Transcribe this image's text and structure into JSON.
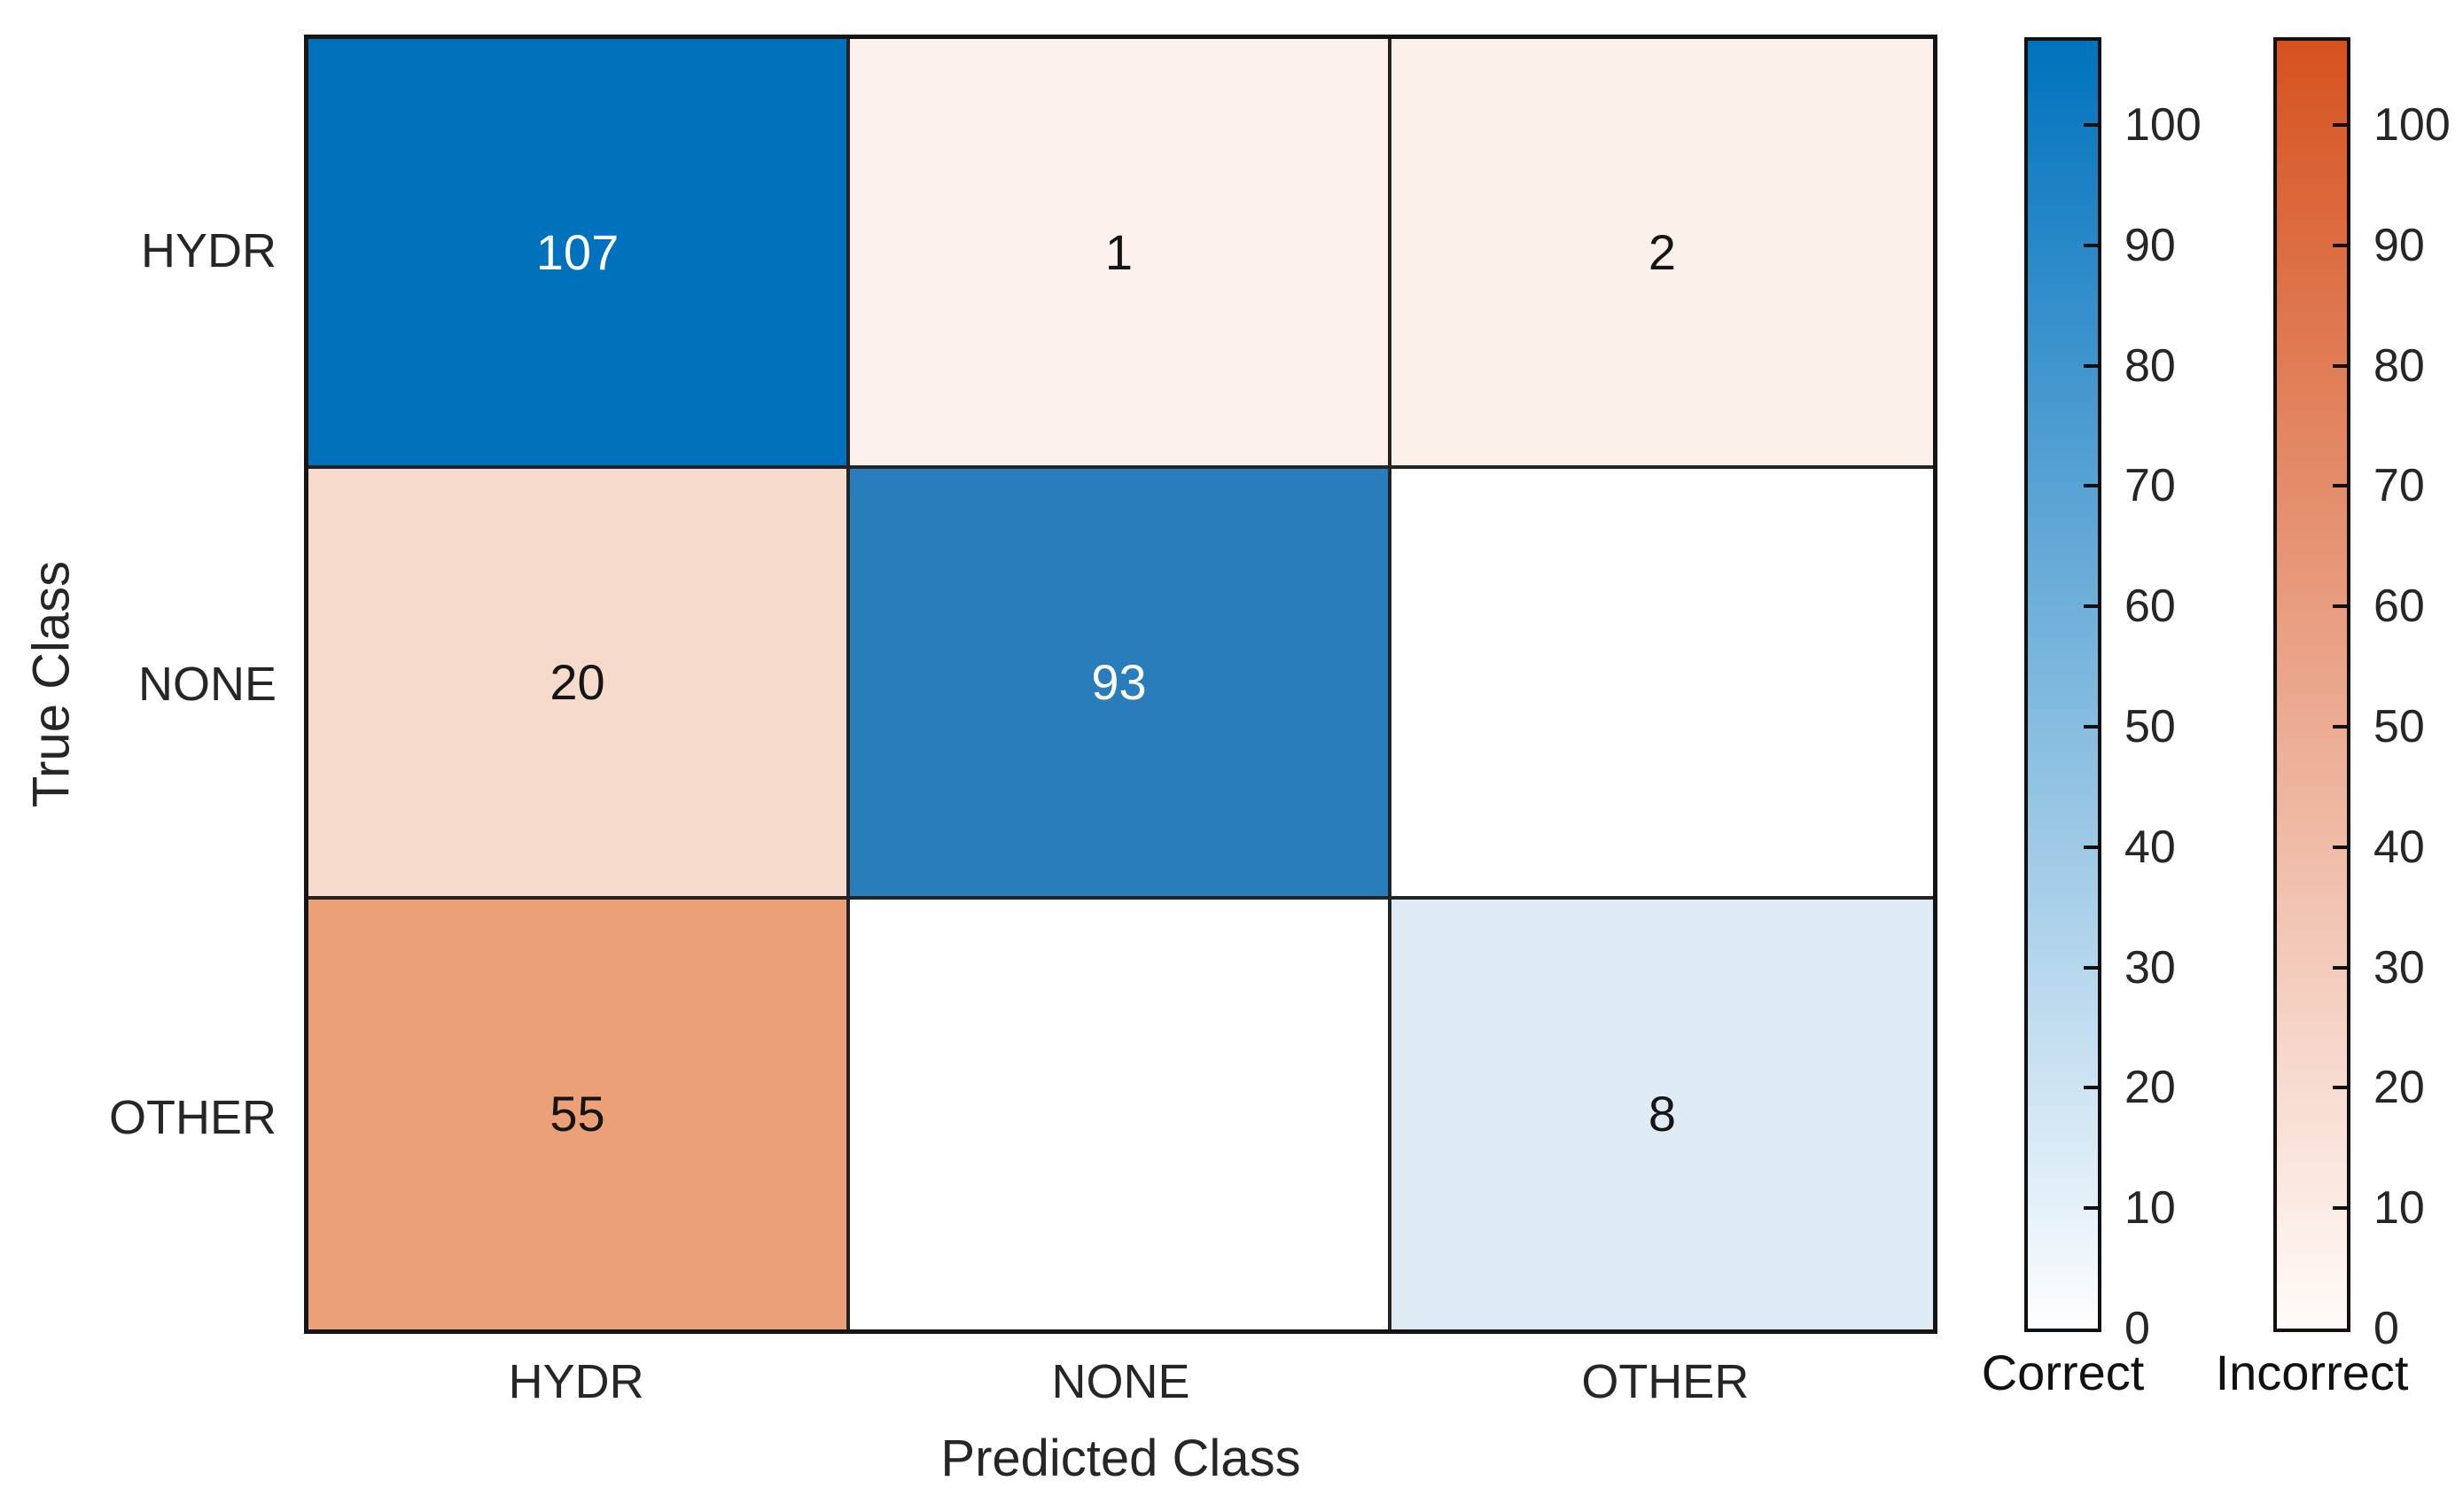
{
  "figure": {
    "background": "#ffffff"
  },
  "chart_data": {
    "type": "heatmap",
    "subtype": "confusion-matrix",
    "title": "",
    "xlabel": "Predicted Class",
    "ylabel": "True Class",
    "categories": [
      "HYDR",
      "NONE",
      "OTHER"
    ],
    "matrix": [
      [
        107,
        1,
        2
      ],
      [
        20,
        93,
        0
      ],
      [
        55,
        0,
        8
      ]
    ],
    "cells": [
      [
        {
          "text": "107",
          "bg": "#0072BD",
          "fg": "#FFFFFF"
        },
        {
          "text": "1",
          "bg": "#FCF1EC",
          "fg": "#151515"
        },
        {
          "text": "2",
          "bg": "#FCF0EA",
          "fg": "#151515"
        }
      ],
      [
        {
          "text": "20",
          "bg": "#F6DBCC",
          "fg": "#151515"
        },
        {
          "text": "93",
          "bg": "#297DBB",
          "fg": "#FFFFFF"
        },
        {
          "text": "",
          "bg": "#FFFFFF",
          "fg": "#151515"
        }
      ],
      [
        {
          "text": "55",
          "bg": "#EBA078",
          "fg": "#151515"
        },
        {
          "text": "",
          "bg": "#FFFFFF",
          "fg": "#151515"
        },
        {
          "text": "8",
          "bg": "#DEEBF4",
          "fg": "#151515"
        }
      ]
    ],
    "grid": "on",
    "colorbars_position": "right",
    "colorbars": [
      {
        "label": "Correct",
        "top_color": "#0072BD",
        "bottom_color": "#FDFEFF",
        "range": [
          0,
          107
        ],
        "ticks": [
          0,
          10,
          20,
          30,
          40,
          50,
          60,
          70,
          80,
          90,
          100
        ]
      },
      {
        "label": "Incorrect",
        "top_color": "#D6521F",
        "bottom_color": "#FFFBF9",
        "range": [
          0,
          107
        ],
        "ticks": [
          0,
          10,
          20,
          30,
          40,
          50,
          60,
          70,
          80,
          90,
          100
        ]
      }
    ]
  }
}
